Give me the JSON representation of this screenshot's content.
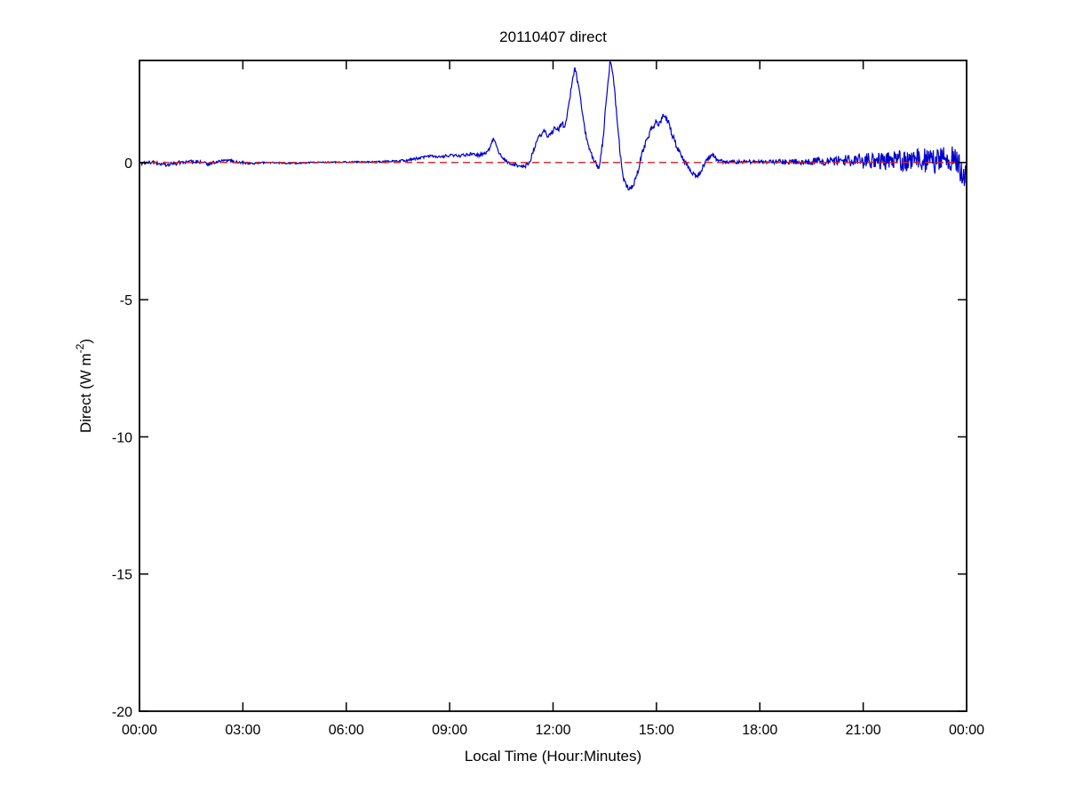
{
  "figure": {
    "background": "#ffffff",
    "title": "20110407 direct"
  },
  "chart_data": {
    "type": "line",
    "title": "20110407 direct",
    "xlabel": "Local Time (Hour:Minutes)",
    "ylabel": {
      "base": "Direct (W m",
      "sup": "-2",
      "close": ")"
    },
    "grid": false,
    "legend": "none",
    "x_axis": {
      "tick_labels": [
        "00:00",
        "03:00",
        "06:00",
        "09:00",
        "12:00",
        "15:00",
        "18:00",
        "21:00",
        "00:00"
      ],
      "tick_hours": [
        0,
        3,
        6,
        9,
        12,
        15,
        18,
        21,
        24
      ],
      "range_hours": [
        0,
        24
      ]
    },
    "y_axis": {
      "tick_labels": [
        "0",
        "-5",
        "-10",
        "-15",
        "-20"
      ],
      "tick_values": [
        0,
        -5,
        -10,
        -15,
        -20
      ],
      "range": [
        -20,
        3.72
      ]
    },
    "zero_reference_line": {
      "value": 0,
      "color": "#cc2222",
      "style": "dashed"
    },
    "series": [
      {
        "name": "direct",
        "color": "#0000cc",
        "style": "solid",
        "samples_per_hour": 60,
        "keypoints": [
          [
            0,
            -0.05
          ],
          [
            0.3,
            0.02
          ],
          [
            0.8,
            -0.08
          ],
          [
            1.2,
            0
          ],
          [
            1.6,
            0.05
          ],
          [
            2,
            -0.05
          ],
          [
            2.5,
            0.1
          ],
          [
            2.8,
            0.02
          ],
          [
            3.2,
            -0.03
          ],
          [
            3.8,
            0
          ],
          [
            4.4,
            -0.03
          ],
          [
            5,
            0
          ],
          [
            5.6,
            0.01
          ],
          [
            6.2,
            0.02
          ],
          [
            6.9,
            0.02
          ],
          [
            7.5,
            0.05
          ],
          [
            7.9,
            0.1
          ],
          [
            8.15,
            0.18
          ],
          [
            8.4,
            0.24
          ],
          [
            8.7,
            0.2
          ],
          [
            9,
            0.26
          ],
          [
            9.3,
            0.24
          ],
          [
            9.6,
            0.3
          ],
          [
            9.85,
            0.27
          ],
          [
            10.05,
            0.35
          ],
          [
            10.18,
            0.55
          ],
          [
            10.27,
            0.88
          ],
          [
            10.38,
            0.5
          ],
          [
            10.5,
            0.2
          ],
          [
            10.7,
            0
          ],
          [
            10.95,
            -0.1
          ],
          [
            11.15,
            -0.15
          ],
          [
            11.3,
            -0.05
          ],
          [
            11.45,
            0.5
          ],
          [
            11.6,
            0.95
          ],
          [
            11.75,
            1.15
          ],
          [
            11.85,
            0.9
          ],
          [
            11.95,
            1.05
          ],
          [
            12.05,
            1.3
          ],
          [
            12.15,
            1.2
          ],
          [
            12.25,
            1.4
          ],
          [
            12.35,
            1.35
          ],
          [
            12.45,
            2.0
          ],
          [
            12.55,
            2.9
          ],
          [
            12.63,
            3.45
          ],
          [
            12.72,
            2.9
          ],
          [
            12.82,
            2.1
          ],
          [
            12.95,
            1.0
          ],
          [
            13.08,
            0.4
          ],
          [
            13.2,
            0.05
          ],
          [
            13.32,
            -0.25
          ],
          [
            13.45,
            0.8
          ],
          [
            13.55,
            2.4
          ],
          [
            13.66,
            3.72
          ],
          [
            13.74,
            3.3
          ],
          [
            13.85,
            1.7
          ],
          [
            13.95,
            0.3
          ],
          [
            14.05,
            -0.65
          ],
          [
            14.18,
            -0.95
          ],
          [
            14.32,
            -0.85
          ],
          [
            14.45,
            -0.35
          ],
          [
            14.58,
            0.3
          ],
          [
            14.72,
            0.85
          ],
          [
            14.88,
            1.3
          ],
          [
            15.0,
            1.5
          ],
          [
            15.1,
            1.4
          ],
          [
            15.2,
            1.8
          ],
          [
            15.32,
            1.55
          ],
          [
            15.45,
            1.05
          ],
          [
            15.6,
            0.55
          ],
          [
            15.75,
            0.15
          ],
          [
            15.95,
            -0.2
          ],
          [
            16.15,
            -0.55
          ],
          [
            16.3,
            -0.3
          ],
          [
            16.45,
            0.1
          ],
          [
            16.6,
            0.3
          ],
          [
            16.75,
            0.12
          ],
          [
            16.95,
            0.02
          ],
          [
            17.3,
            0.02
          ],
          [
            17.7,
            0.03
          ],
          [
            18.2,
            0.02
          ],
          [
            19,
            0.03
          ],
          [
            20,
            0.05
          ],
          [
            21,
            0.05
          ],
          [
            22,
            0.07
          ],
          [
            23,
            0.06
          ],
          [
            23.6,
            0.1
          ],
          [
            23.85,
            -0.3
          ],
          [
            23.92,
            -0.55
          ],
          [
            24,
            -0.1
          ]
        ],
        "noise_envelope": [
          [
            0,
            0.06
          ],
          [
            1,
            0.07
          ],
          [
            2,
            0.06
          ],
          [
            3,
            0.04
          ],
          [
            4,
            0.03
          ],
          [
            5,
            0.025
          ],
          [
            6,
            0.025
          ],
          [
            7,
            0.03
          ],
          [
            8,
            0.05
          ],
          [
            9,
            0.05
          ],
          [
            10,
            0.06
          ],
          [
            11,
            0.06
          ],
          [
            12,
            0.09
          ],
          [
            13,
            0.1
          ],
          [
            14,
            0.1
          ],
          [
            15,
            0.12
          ],
          [
            16,
            0.1
          ],
          [
            17,
            0.06
          ],
          [
            18,
            0.07
          ],
          [
            19,
            0.1
          ],
          [
            20,
            0.16
          ],
          [
            21,
            0.28
          ],
          [
            22,
            0.38
          ],
          [
            23,
            0.48
          ],
          [
            23.8,
            0.52
          ],
          [
            24,
            0.5
          ]
        ]
      }
    ]
  }
}
